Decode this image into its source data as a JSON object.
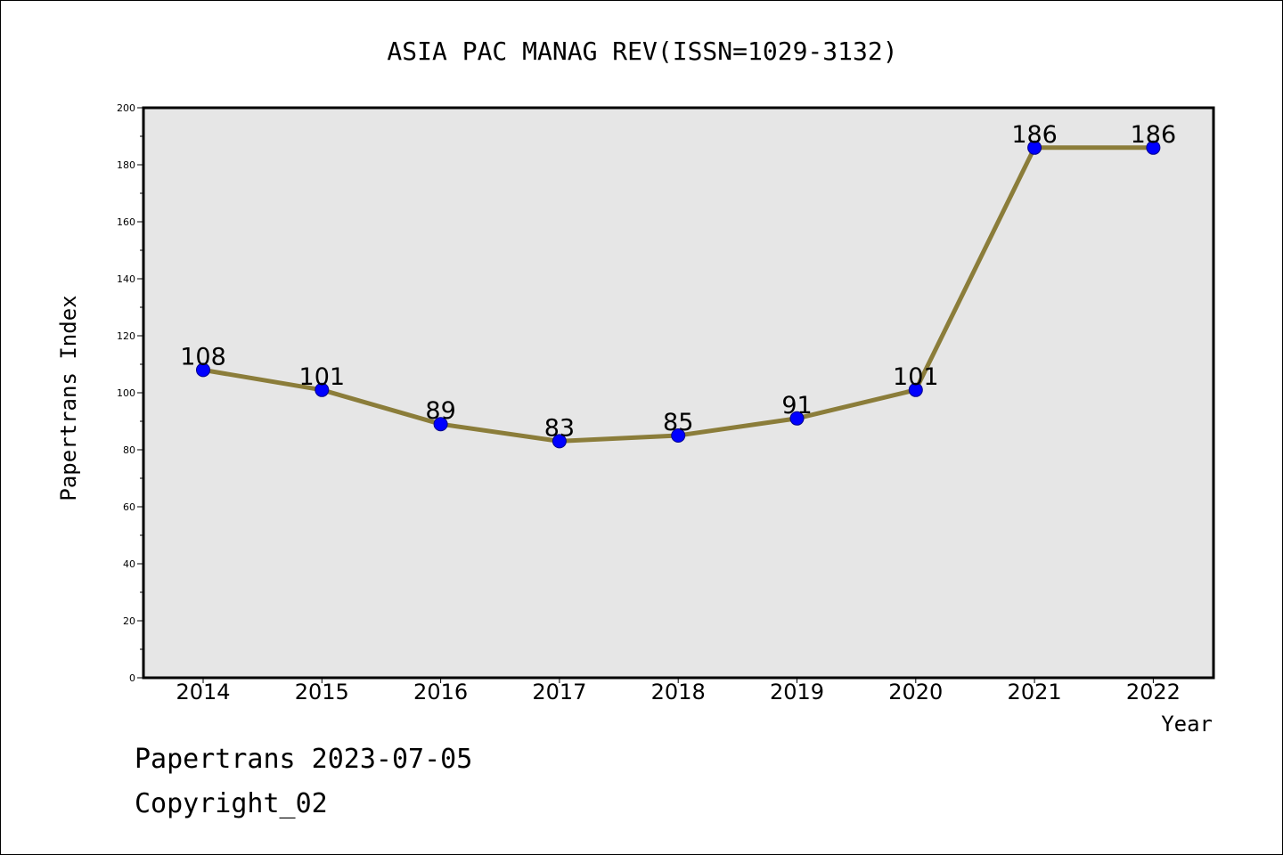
{
  "chart_data": {
    "type": "line",
    "title": "ASIA PAC MANAG REV(ISSN=1029-3132)",
    "xlabel": "Year",
    "ylabel": "Papertrans Index",
    "categories": [
      "2014",
      "2015",
      "2016",
      "2017",
      "2018",
      "2019",
      "2020",
      "2021",
      "2022"
    ],
    "series": [
      {
        "values": [
          108,
          101,
          89,
          83,
          85,
          91,
          101,
          186,
          186
        ]
      }
    ],
    "ylim": [
      0,
      200
    ],
    "yticks": [
      0,
      20,
      40,
      60,
      80,
      100,
      120,
      140,
      160,
      180,
      200
    ],
    "grid": false,
    "line_color": "#8B7D3A",
    "marker_color": "#0000FF",
    "plot_background": "#E6E6E6"
  },
  "footer": {
    "line1": "Papertrans 2023-07-05",
    "line2": "Copyright_02"
  }
}
